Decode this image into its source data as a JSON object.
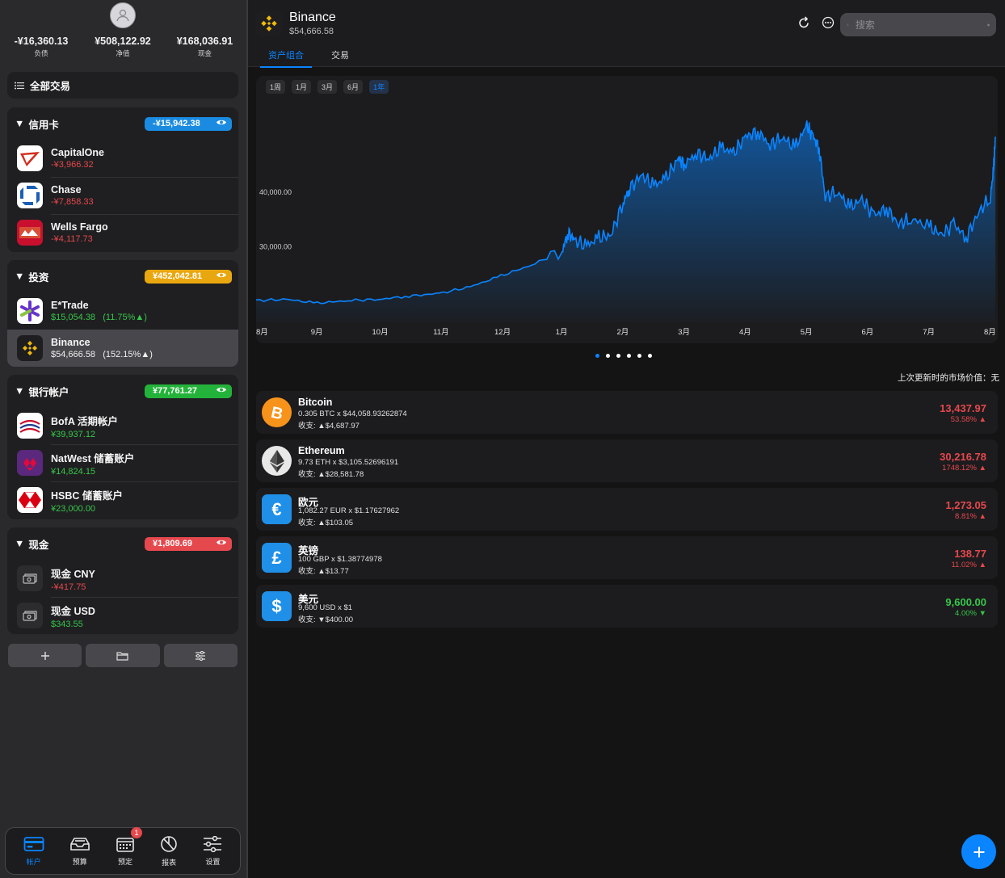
{
  "sidebar": {
    "totals": [
      {
        "value": "-¥16,360.13",
        "label": "负债"
      },
      {
        "value": "¥508,122.92",
        "label": "净值"
      },
      {
        "value": "¥168,036.91",
        "label": "现金"
      }
    ],
    "all_transactions": "全部交易",
    "sections": {
      "credit": {
        "title": "信用卡",
        "total": "-¥15,942.38",
        "color": "#1a8be0",
        "items": [
          {
            "name": "CapitalOne",
            "amount": "-¥3,966.32"
          },
          {
            "name": "Chase",
            "amount": "-¥7,858.33"
          },
          {
            "name": "Wells Fargo",
            "amount": "-¥4,117.73"
          }
        ]
      },
      "invest": {
        "title": "投资",
        "total": "¥452,042.81",
        "color": "#e9a70f",
        "items": [
          {
            "name": "E*Trade",
            "amount": "$15,054.38",
            "change": "(11.75%▲)"
          },
          {
            "name": "Binance",
            "amount": "$54,666.58",
            "change": "(152.15%▲)"
          }
        ]
      },
      "bank": {
        "title": "银行帐户",
        "total": "¥77,761.27",
        "color": "#24b33a",
        "items": [
          {
            "name": "BofA 活期帐户",
            "amount": "¥39,937.12"
          },
          {
            "name": "NatWest 储蓄账户",
            "amount": "¥14,824.15"
          },
          {
            "name": "HSBC 储蓄账户",
            "amount": "¥23,000.00"
          }
        ]
      },
      "cash": {
        "title": "现金",
        "total": "¥1,809.69",
        "color": "#e5484d",
        "items": [
          {
            "name": "现金 CNY",
            "amount": "-¥417.75"
          },
          {
            "name": "现金 USD",
            "amount": "$343.55"
          }
        ]
      }
    },
    "tabbar": [
      {
        "label": "帐户",
        "icon": "card-icon"
      },
      {
        "label": "预算",
        "icon": "tray-icon"
      },
      {
        "label": "预定",
        "icon": "calendar-icon",
        "badge": "1"
      },
      {
        "label": "报表",
        "icon": "pie-chart-icon"
      },
      {
        "label": "设置",
        "icon": "sliders-icon"
      }
    ]
  },
  "header": {
    "title": "Binance",
    "subtitle": "$54,666.58",
    "tabs": [
      "资产组合",
      "交易"
    ],
    "search_placeholder": "搜索"
  },
  "chart_ranges": [
    "1周",
    "1月",
    "3月",
    "6月",
    "1年"
  ],
  "chart_data": {
    "type": "area",
    "x_ticks": [
      "8月",
      "9月",
      "10月",
      "11月",
      "12月",
      "1月",
      "2月",
      "3月",
      "4月",
      "5月",
      "6月",
      "7月",
      "8月"
    ],
    "y_ticks": [
      {
        "value": 30000,
        "label": "30,000.00"
      },
      {
        "value": 40000,
        "label": "40,000.00"
      }
    ],
    "ylim": [
      16000,
      57000
    ],
    "series": [
      {
        "color": "#0a84ff",
        "x_month_index": [
          0,
          0.5,
          1,
          1.5,
          2,
          2.5,
          3,
          3.5,
          4,
          4.5,
          5,
          5.1,
          5.2,
          5.4,
          5.6,
          5.8,
          6,
          6.1,
          6.3,
          6.5,
          6.7,
          6.9,
          7,
          7.2,
          7.4,
          7.6,
          7.8,
          8,
          8.2,
          8.4,
          8.6,
          8.8,
          9,
          9.1,
          9.2,
          9.3,
          9.5,
          9.7,
          9.9,
          10.1,
          10.3,
          10.5,
          10.7,
          11,
          11.2,
          11.4,
          11.6,
          11.8,
          12,
          12.05,
          12.08
        ],
        "values": [
          20000,
          20200,
          19500,
          20000,
          20200,
          20800,
          21300,
          22500,
          24500,
          26500,
          29000,
          32500,
          31000,
          30000,
          31500,
          32000,
          38000,
          40500,
          43000,
          41000,
          42500,
          46000,
          45000,
          47000,
          46000,
          48000,
          47000,
          50000,
          51000,
          48500,
          50000,
          48000,
          52000,
          50000,
          48000,
          39000,
          40000,
          37000,
          38500,
          35500,
          37000,
          34000,
          35000,
          33500,
          32000,
          34000,
          31500,
          36000,
          39000,
          44000,
          50000
        ]
      }
    ]
  },
  "pagination_dots": 6,
  "last_update": "上次更新时的市场价值：无",
  "holdings": [
    {
      "name": "Bitcoin",
      "line1": "0.305 BTC x $44,058.93262874",
      "line2": "收支: ▲$4,687.97",
      "value": "13,437.97",
      "pct": "53.58% ▲",
      "glyph": "B",
      "color": "#f7931a",
      "tone": "neg"
    },
    {
      "name": "Ethereum",
      "line1": "9.73 ETH x $3,105.52696191",
      "line2": "收支: ▲$28,581.78",
      "value": "30,216.78",
      "pct": "1748.12% ▲",
      "glyph": "",
      "color": "#e8e8e8",
      "tone": "neg"
    },
    {
      "name": "欧元",
      "line1": "1,082.27 EUR x $1.17627962",
      "line2": "收支: ▲$103.05",
      "value": "1,273.05",
      "pct": "8.81% ▲",
      "glyph": "€",
      "color": "#1f8fe8",
      "tone": "neg"
    },
    {
      "name": "英镑",
      "line1": "100 GBP x $1.38774978",
      "line2": "收支: ▲$13.77",
      "value": "138.77",
      "pct": "11.02% ▲",
      "glyph": "£",
      "color": "#1f8fe8",
      "tone": "neg"
    },
    {
      "name": "美元",
      "line1": "9,600 USD x $1",
      "line2": "收支: ▼$400.00",
      "value": "9,600.00",
      "pct": "4.00% ▼",
      "glyph": "$",
      "color": "#1f8fe8",
      "tone": "pos"
    }
  ]
}
